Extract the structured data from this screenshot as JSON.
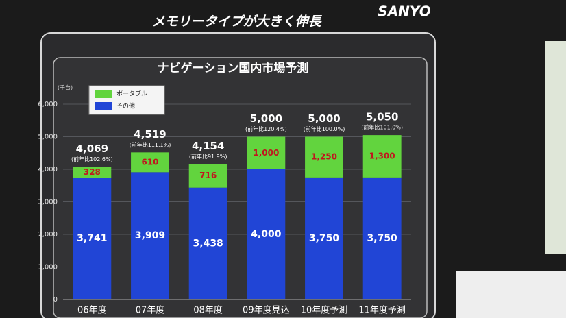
{
  "chart_data": {
    "type": "stacked_bar",
    "title": "メモリータイプが大きく伸長",
    "subtitle": "ナビゲーション国内市場予測",
    "brand": "SANYO",
    "y_unit": "(千台)",
    "categories": [
      "06年度",
      "07年度",
      "08年度",
      "09年度見込",
      "10年度予測",
      "11年度予測"
    ],
    "series": [
      {
        "name": "その他",
        "color": "#2145d6",
        "label_color": "#ffffff",
        "values": [
          3741,
          3909,
          3438,
          4000,
          3750,
          3750
        ],
        "value_labels": [
          "3,741",
          "3,909",
          "3,438",
          "4,000",
          "3,750",
          "3,750"
        ]
      },
      {
        "name": "ポータブル",
        "color": "#62d43e",
        "label_color": "#c0161e",
        "values": [
          328,
          610,
          716,
          1000,
          1250,
          1300
        ],
        "value_labels": [
          "328",
          "610",
          "716",
          "1,000",
          "1,250",
          "1,300"
        ]
      }
    ],
    "totals": [
      {
        "value": 4069,
        "label": "4,069",
        "growth": "(前年比102.6%)"
      },
      {
        "value": 4519,
        "label": "4,519",
        "growth": "(前年比111.1%)"
      },
      {
        "value": 4154,
        "label": "4,154",
        "growth": "(前年比91.9%)"
      },
      {
        "value": 5000,
        "label": "5,000",
        "growth": "(前年比120.4%)"
      },
      {
        "value": 5000,
        "label": "5,000",
        "growth": "(前年比100.0%)"
      },
      {
        "value": 5050,
        "label": "5,050",
        "growth": "(前年比101.0%)"
      }
    ],
    "ylim": [
      0,
      6000
    ],
    "yticks": [
      0,
      {
        "value": 1000,
        "label": "1,000"
      },
      {
        "value": 2000,
        "label": "2,000"
      },
      {
        "value": 3000,
        "label": "3,000"
      },
      {
        "value": 4000,
        "label": "4,000"
      },
      {
        "value": 5000,
        "label": "5,000"
      },
      {
        "value": 6000,
        "label": "6,000"
      }
    ],
    "grid": true
  }
}
